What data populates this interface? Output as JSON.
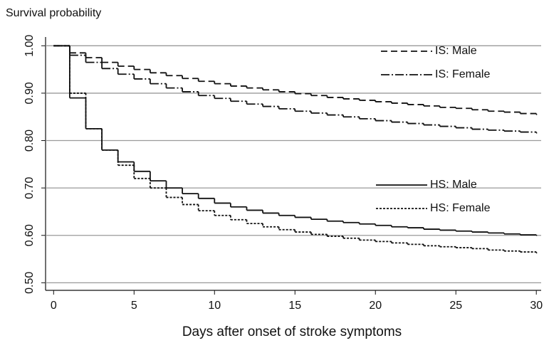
{
  "chart_data": {
    "type": "step",
    "y_label": "Survival probability",
    "x_label": "Days after onset of stroke symptoms",
    "x": [
      0,
      1,
      2,
      3,
      4,
      5,
      6,
      7,
      8,
      9,
      10,
      11,
      12,
      13,
      14,
      15,
      16,
      17,
      18,
      19,
      20,
      21,
      22,
      23,
      24,
      25,
      26,
      27,
      28,
      29,
      30
    ],
    "series": [
      {
        "name": "IS: Male",
        "color": "#111111",
        "dash": "9,5",
        "values": [
          1.0,
          0.985,
          0.975,
          0.965,
          0.957,
          0.95,
          0.943,
          0.937,
          0.931,
          0.925,
          0.92,
          0.915,
          0.911,
          0.907,
          0.903,
          0.899,
          0.895,
          0.891,
          0.888,
          0.885,
          0.882,
          0.879,
          0.876,
          0.873,
          0.87,
          0.868,
          0.865,
          0.862,
          0.86,
          0.857,
          0.855
        ]
      },
      {
        "name": "IS: Female",
        "color": "#111111",
        "dash": "12,3,2,3",
        "values": [
          1.0,
          0.98,
          0.965,
          0.952,
          0.94,
          0.93,
          0.92,
          0.911,
          0.903,
          0.895,
          0.889,
          0.883,
          0.877,
          0.872,
          0.867,
          0.862,
          0.858,
          0.854,
          0.85,
          0.846,
          0.842,
          0.839,
          0.836,
          0.833,
          0.83,
          0.827,
          0.824,
          0.822,
          0.82,
          0.818,
          0.816
        ]
      },
      {
        "name": "HS: Male",
        "color": "#111111",
        "dash": "none",
        "values": [
          1.0,
          0.89,
          0.825,
          0.78,
          0.755,
          0.735,
          0.715,
          0.7,
          0.688,
          0.678,
          0.668,
          0.66,
          0.653,
          0.647,
          0.642,
          0.638,
          0.634,
          0.63,
          0.627,
          0.624,
          0.621,
          0.618,
          0.616,
          0.613,
          0.611,
          0.609,
          0.607,
          0.605,
          0.603,
          0.601,
          0.6
        ]
      },
      {
        "name": "HS: Female",
        "color": "#111111",
        "dash": "3,2",
        "values": [
          1.0,
          0.9,
          0.825,
          0.78,
          0.748,
          0.72,
          0.7,
          0.68,
          0.665,
          0.652,
          0.642,
          0.633,
          0.625,
          0.618,
          0.612,
          0.607,
          0.602,
          0.598,
          0.594,
          0.59,
          0.587,
          0.584,
          0.581,
          0.578,
          0.576,
          0.574,
          0.572,
          0.569,
          0.567,
          0.565,
          0.563
        ]
      }
    ],
    "xlim": [
      -0.5,
      30.3
    ],
    "ylim": [
      0.484,
      1.014
    ],
    "xticks": [
      0,
      5,
      10,
      15,
      20,
      25,
      30
    ],
    "yticks": [
      {
        "value": 0.5,
        "label": "0.50"
      },
      {
        "value": 0.6,
        "label": "0.60"
      },
      {
        "value": 0.7,
        "label": "0.70"
      },
      {
        "value": 0.8,
        "label": "0.80"
      },
      {
        "value": 0.9,
        "label": "0.90"
      },
      {
        "value": 1.0,
        "label": "1.00"
      }
    ],
    "grid": true
  }
}
